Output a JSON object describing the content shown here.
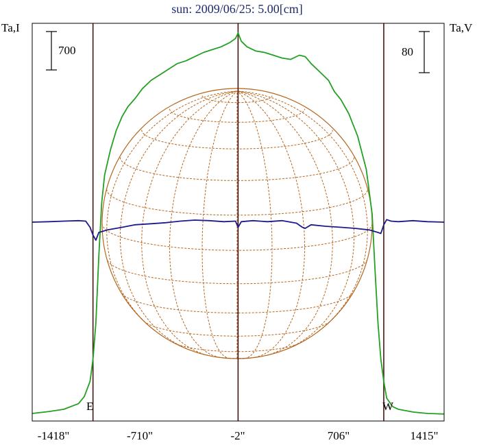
{
  "chart_data": {
    "type": "line",
    "title": "sun: 2009/06/25: 5.00[cm]",
    "left_axis_label": "Ta,I",
    "right_axis_label": "Ta,V",
    "left_scale_label": "700",
    "right_scale_label": "80",
    "x_ticks": [
      "-1418\"",
      "-710\"",
      "-2\"",
      "706\"",
      "1415\""
    ],
    "limb_labels": {
      "east": "E",
      "west": "W"
    },
    "colors": {
      "intensity": "#22a022",
      "polarization": "#1a1a8c",
      "disk_grid": "#b5651d",
      "limb_lines": "#4a1410",
      "frame": "#000000"
    },
    "grid": "solar disk latitude/longitude grid",
    "series": [
      {
        "key": "intensity_I",
        "x": [
          -1418,
          -1300,
          -1200,
          -1100,
          -1060,
          -1020,
          -1000,
          -980,
          -960,
          -940,
          -920,
          -880,
          -840,
          -800,
          -760,
          -710,
          -660,
          -600,
          -540,
          -480,
          -420,
          -360,
          -300,
          -240,
          -180,
          -120,
          -60,
          -20,
          -2,
          20,
          60,
          120,
          180,
          240,
          300,
          360,
          420,
          460,
          500,
          560,
          620,
          660,
          706,
          760,
          820,
          880,
          920,
          940,
          960,
          980,
          1000,
          1020,
          1060,
          1100,
          1200,
          1300,
          1415
        ],
        "y": [
          5,
          12,
          20,
          40,
          65,
          120,
          200,
          330,
          570,
          760,
          860,
          950,
          1020,
          1070,
          1105,
          1135,
          1170,
          1200,
          1220,
          1240,
          1260,
          1270,
          1285,
          1300,
          1310,
          1320,
          1335,
          1350,
          1370,
          1340,
          1320,
          1305,
          1300,
          1290,
          1280,
          1275,
          1290,
          1285,
          1260,
          1230,
          1200,
          1160,
          1130,
          1080,
          1000,
          880,
          720,
          520,
          330,
          200,
          120,
          60,
          30,
          20,
          10,
          5,
          3
        ]
      },
      {
        "key": "polarization_V",
        "x": [
          -1418,
          -1300,
          -1200,
          -1100,
          -1050,
          -1020,
          -1000,
          -980,
          -960,
          -900,
          -800,
          -710,
          -600,
          -500,
          -400,
          -300,
          -200,
          -100,
          -20,
          -2,
          20,
          100,
          200,
          300,
          400,
          440,
          460,
          500,
          600,
          706,
          800,
          900,
          960,
          980,
          1000,
          1020,
          1050,
          1100,
          1200,
          1300,
          1415
        ],
        "y": [
          0,
          1,
          2,
          3,
          2,
          -10,
          -25,
          -35,
          -20,
          -15,
          -10,
          -5,
          -3,
          -1,
          2,
          4,
          3,
          1,
          2,
          -10,
          1,
          3,
          1,
          3,
          -2,
          -10,
          -12,
          -5,
          -8,
          -10,
          -12,
          -15,
          -20,
          -22,
          -5,
          5,
          2,
          1,
          3,
          1,
          0
        ]
      }
    ]
  }
}
